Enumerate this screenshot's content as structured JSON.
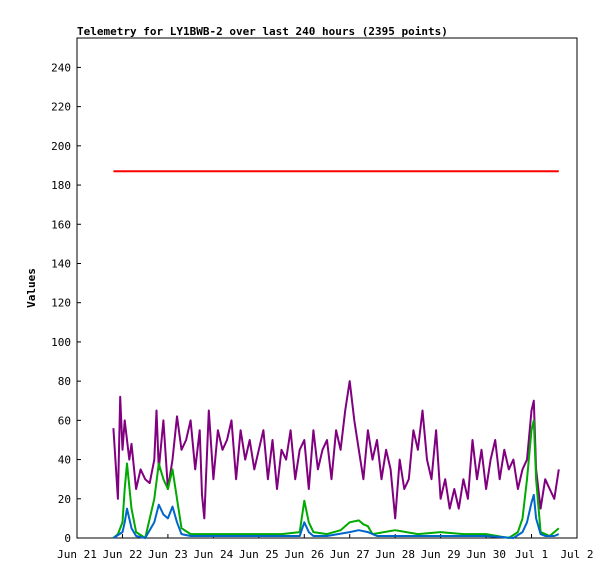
{
  "chart_data": {
    "type": "line",
    "title": "Telemetry for LY1BWB-2 over last 240 hours (2395 points)",
    "xlabel": "",
    "ylabel": "Values",
    "xlim": [
      "Jun 21",
      "Jul 2"
    ],
    "ylim": [
      0,
      255
    ],
    "y_ticks": [
      0,
      20,
      40,
      60,
      80,
      100,
      120,
      140,
      160,
      180,
      200,
      220,
      240
    ],
    "x_ticks": [
      "Jun 21",
      "Jun 22",
      "Jun 23",
      "Jun 24",
      "Jun 25",
      "Jun 26",
      "Jun 27",
      "Jun 28",
      "Jun 29",
      "Jun 30",
      "Jul 1",
      "Jul 2"
    ],
    "grid": false,
    "legend": "none",
    "series": [
      {
        "color": "#ff0000",
        "x": [
          0.8,
          1.5,
          2.3,
          3.0,
          4.0,
          5.0,
          6.0,
          7.0,
          8.0,
          9.0,
          10.0,
          10.6
        ],
        "values": [
          187,
          187,
          187,
          187,
          187,
          187,
          187,
          187,
          187,
          187,
          187,
          187
        ]
      },
      {
        "color": "#800080",
        "x": [
          0.8,
          0.9,
          0.95,
          1.0,
          1.05,
          1.15,
          1.2,
          1.3,
          1.4,
          1.5,
          1.6,
          1.7,
          1.75,
          1.8,
          1.9,
          2.0,
          2.1,
          2.2,
          2.3,
          2.4,
          2.5,
          2.6,
          2.7,
          2.75,
          2.8,
          2.9,
          3.0,
          3.1,
          3.2,
          3.3,
          3.4,
          3.5,
          3.6,
          3.7,
          3.8,
          3.9,
          4.0,
          4.1,
          4.2,
          4.3,
          4.4,
          4.5,
          4.6,
          4.7,
          4.8,
          4.9,
          5.0,
          5.1,
          5.2,
          5.3,
          5.4,
          5.5,
          5.6,
          5.7,
          5.8,
          5.9,
          6.0,
          6.05,
          6.1,
          6.2,
          6.3,
          6.4,
          6.5,
          6.6,
          6.7,
          6.8,
          6.9,
          7.0,
          7.1,
          7.2,
          7.3,
          7.4,
          7.5,
          7.6,
          7.7,
          7.8,
          7.9,
          8.0,
          8.1,
          8.2,
          8.3,
          8.4,
          8.5,
          8.6,
          8.7,
          8.8,
          8.9,
          9.0,
          9.1,
          9.2,
          9.3,
          9.4,
          9.5,
          9.6,
          9.7,
          9.8,
          9.9,
          10.0,
          10.05,
          10.1,
          10.2,
          10.3,
          10.4,
          10.5,
          10.6
        ],
        "values": [
          56,
          20,
          72,
          45,
          60,
          40,
          48,
          25,
          35,
          30,
          28,
          40,
          65,
          35,
          60,
          25,
          40,
          62,
          45,
          50,
          60,
          35,
          55,
          22,
          10,
          65,
          30,
          55,
          45,
          50,
          60,
          30,
          55,
          40,
          50,
          35,
          45,
          55,
          30,
          50,
          25,
          45,
          40,
          55,
          30,
          45,
          50,
          25,
          55,
          35,
          45,
          50,
          30,
          55,
          45,
          65,
          80,
          70,
          60,
          45,
          30,
          55,
          40,
          50,
          30,
          45,
          35,
          10,
          40,
          25,
          30,
          55,
          45,
          65,
          40,
          30,
          55,
          20,
          30,
          15,
          25,
          15,
          30,
          20,
          50,
          30,
          45,
          25,
          40,
          50,
          30,
          45,
          35,
          40,
          25,
          35,
          40,
          65,
          70,
          35,
          15,
          30,
          25,
          20,
          35
        ]
      },
      {
        "color": "#00aa00",
        "x": [
          0.8,
          0.9,
          1.0,
          1.05,
          1.1,
          1.2,
          1.3,
          1.5,
          1.7,
          1.8,
          1.9,
          2.0,
          2.1,
          2.2,
          2.3,
          2.5,
          3.0,
          3.5,
          4.0,
          4.5,
          4.9,
          5.0,
          5.1,
          5.2,
          5.5,
          5.8,
          6.0,
          6.2,
          6.3,
          6.4,
          6.5,
          7.0,
          7.5,
          8.0,
          8.5,
          9.0,
          9.5,
          9.7,
          9.8,
          9.9,
          10.0,
          10.05,
          10.1,
          10.2,
          10.3,
          10.4,
          10.5,
          10.6
        ],
        "values": [
          0,
          2,
          8,
          25,
          38,
          15,
          3,
          0,
          20,
          38,
          30,
          25,
          35,
          20,
          5,
          2,
          2,
          2,
          2,
          2,
          3,
          19,
          8,
          3,
          2,
          4,
          8,
          9,
          7,
          6,
          2,
          4,
          2,
          3,
          2,
          2,
          0,
          3,
          10,
          30,
          55,
          60,
          30,
          3,
          2,
          1,
          3,
          5
        ]
      },
      {
        "color": "#0066cc",
        "x": [
          0.8,
          1.0,
          1.05,
          1.1,
          1.2,
          1.3,
          1.5,
          1.7,
          1.8,
          1.9,
          2.0,
          2.1,
          2.2,
          2.3,
          2.5,
          3.0,
          4.0,
          4.9,
          5.0,
          5.1,
          5.2,
          5.5,
          6.0,
          6.2,
          6.4,
          6.6,
          7.0,
          8.0,
          9.0,
          9.6,
          9.8,
          9.9,
          10.0,
          10.05,
          10.1,
          10.2,
          10.3,
          10.4,
          10.5,
          10.6
        ],
        "values": [
          0,
          3,
          8,
          15,
          5,
          1,
          0,
          8,
          17,
          12,
          10,
          16,
          8,
          2,
          1,
          1,
          1,
          1,
          8,
          3,
          1,
          1,
          3,
          4,
          3,
          1,
          1,
          1,
          1,
          0,
          3,
          8,
          18,
          22,
          10,
          2,
          1,
          1,
          1,
          2
        ]
      }
    ]
  }
}
